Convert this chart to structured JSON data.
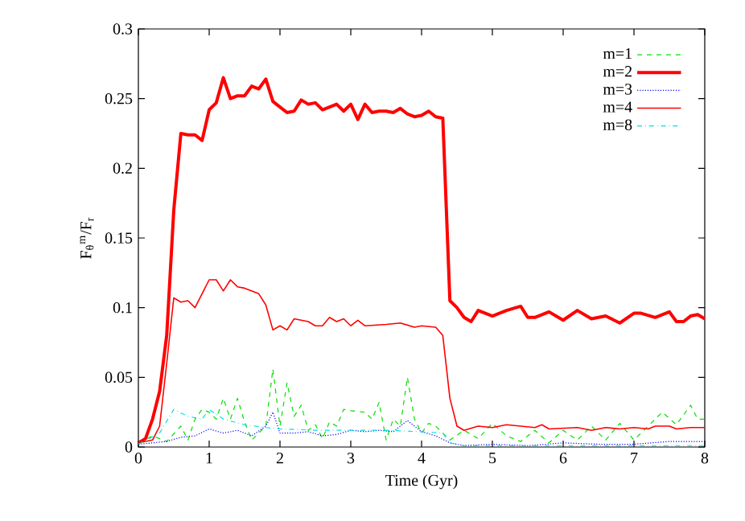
{
  "chart_data": {
    "type": "line",
    "xlabel": "Time (Gyr)",
    "ylabel": "F$_{θ}$$^{m}$/F$_{r}$",
    "xlim": [
      0,
      8
    ],
    "ylim": [
      0,
      0.3
    ],
    "xticks": [
      0,
      1,
      2,
      3,
      4,
      5,
      6,
      7,
      8
    ],
    "yticks": [
      0,
      0.05,
      0.1,
      0.15,
      0.2,
      0.25,
      0.3
    ],
    "grid": false,
    "legend": "top right",
    "series": [
      {
        "name": "m=1",
        "color": "#00e000",
        "line_style": "dashed",
        "x": [
          0,
          0.2,
          0.4,
          0.6,
          0.7,
          0.8,
          0.9,
          1.0,
          1.1,
          1.2,
          1.3,
          1.4,
          1.5,
          1.6,
          1.7,
          1.8,
          1.9,
          2.0,
          2.1,
          2.2,
          2.3,
          2.4,
          2.5,
          2.6,
          2.7,
          2.8,
          2.9,
          3.0,
          3.2,
          3.3,
          3.4,
          3.5,
          3.6,
          3.7,
          3.8,
          3.9,
          4.0,
          4.1,
          4.2,
          4.4,
          4.6,
          4.8,
          5.0,
          5.2,
          5.4,
          5.6,
          5.8,
          6.0,
          6.2,
          6.4,
          6.6,
          6.8,
          7.0,
          7.2,
          7.4,
          7.6,
          7.8,
          7.9,
          8.0
        ],
        "values": [
          0.003,
          0.008,
          0.004,
          0.015,
          0.005,
          0.02,
          0.027,
          0.025,
          0.02,
          0.035,
          0.02,
          0.035,
          0.018,
          0.005,
          0.01,
          0.015,
          0.056,
          0.015,
          0.046,
          0.022,
          0.03,
          0.012,
          0.016,
          0.006,
          0.018,
          0.015,
          0.027,
          0.026,
          0.025,
          0.02,
          0.032,
          0.005,
          0.02,
          0.015,
          0.05,
          0.02,
          0.01,
          0.017,
          0.015,
          0.005,
          0.012,
          0.006,
          0.017,
          0.008,
          0.004,
          0.012,
          0.003,
          0.012,
          0.005,
          0.015,
          0.005,
          0.017,
          0.005,
          0.015,
          0.025,
          0.016,
          0.03,
          0.02,
          0.02
        ]
      },
      {
        "name": "m=2",
        "color": "#ff0000",
        "line_style": "solid",
        "x": [
          0,
          0.1,
          0.2,
          0.3,
          0.4,
          0.5,
          0.6,
          0.7,
          0.8,
          0.9,
          1.0,
          1.1,
          1.2,
          1.3,
          1.4,
          1.5,
          1.6,
          1.7,
          1.8,
          1.9,
          2.0,
          2.1,
          2.2,
          2.3,
          2.4,
          2.5,
          2.6,
          2.7,
          2.8,
          2.9,
          3.0,
          3.1,
          3.2,
          3.3,
          3.4,
          3.5,
          3.6,
          3.7,
          3.8,
          3.9,
          4.0,
          4.1,
          4.2,
          4.3,
          4.4,
          4.5,
          4.6,
          4.7,
          4.8,
          4.9,
          5.0,
          5.2,
          5.4,
          5.5,
          5.6,
          5.8,
          6.0,
          6.2,
          6.4,
          6.6,
          6.8,
          7.0,
          7.1,
          7.3,
          7.5,
          7.6,
          7.7,
          7.8,
          7.9,
          8.0
        ],
        "values": [
          0.003,
          0.006,
          0.02,
          0.04,
          0.08,
          0.17,
          0.225,
          0.224,
          0.224,
          0.22,
          0.242,
          0.247,
          0.265,
          0.25,
          0.252,
          0.252,
          0.259,
          0.257,
          0.264,
          0.248,
          0.244,
          0.24,
          0.241,
          0.249,
          0.246,
          0.247,
          0.242,
          0.244,
          0.246,
          0.241,
          0.246,
          0.235,
          0.246,
          0.24,
          0.241,
          0.241,
          0.24,
          0.243,
          0.239,
          0.237,
          0.238,
          0.241,
          0.237,
          0.236,
          0.105,
          0.1,
          0.093,
          0.09,
          0.098,
          0.096,
          0.094,
          0.098,
          0.101,
          0.093,
          0.093,
          0.097,
          0.091,
          0.098,
          0.092,
          0.094,
          0.089,
          0.096,
          0.096,
          0.093,
          0.097,
          0.09,
          0.09,
          0.094,
          0.095,
          0.092
        ]
      },
      {
        "name": "m=3",
        "color": "#0000ff",
        "line_style": "dotted",
        "x": [
          0,
          0.4,
          0.6,
          0.8,
          1.0,
          1.2,
          1.4,
          1.6,
          1.8,
          1.9,
          2.0,
          2.2,
          2.4,
          2.6,
          2.8,
          3.0,
          3.2,
          3.4,
          3.6,
          3.8,
          4.0,
          4.2,
          4.4,
          4.6,
          5.0,
          5.5,
          6.0,
          6.5,
          7.0,
          7.5,
          8.0
        ],
        "values": [
          0.002,
          0.004,
          0.007,
          0.008,
          0.013,
          0.01,
          0.012,
          0.008,
          0.015,
          0.025,
          0.01,
          0.01,
          0.011,
          0.008,
          0.009,
          0.012,
          0.011,
          0.012,
          0.011,
          0.019,
          0.011,
          0.008,
          0.003,
          0.001,
          0.002,
          0.001,
          0.003,
          0.002,
          0.002,
          0.004,
          0.004
        ]
      },
      {
        "name": "m=4",
        "color": "#ff0000",
        "line_style": "solid",
        "x": [
          0,
          0.2,
          0.3,
          0.4,
          0.5,
          0.6,
          0.7,
          0.8,
          0.9,
          1.0,
          1.1,
          1.2,
          1.3,
          1.4,
          1.5,
          1.7,
          1.8,
          1.9,
          2.0,
          2.1,
          2.2,
          2.4,
          2.5,
          2.6,
          2.7,
          2.8,
          2.9,
          3.0,
          3.1,
          3.2,
          3.5,
          3.7,
          3.9,
          4.0,
          4.2,
          4.3,
          4.4,
          4.5,
          4.6,
          4.8,
          5.0,
          5.2,
          5.6,
          5.7,
          5.8,
          6.2,
          6.4,
          6.6,
          6.8,
          7.0,
          7.2,
          7.3,
          7.5,
          7.6,
          7.8,
          8.0
        ],
        "values": [
          0.003,
          0.005,
          0.015,
          0.06,
          0.107,
          0.104,
          0.105,
          0.1,
          0.11,
          0.12,
          0.12,
          0.112,
          0.12,
          0.115,
          0.114,
          0.11,
          0.102,
          0.084,
          0.087,
          0.084,
          0.092,
          0.09,
          0.087,
          0.087,
          0.093,
          0.09,
          0.092,
          0.087,
          0.091,
          0.087,
          0.088,
          0.089,
          0.086,
          0.087,
          0.086,
          0.08,
          0.035,
          0.015,
          0.012,
          0.015,
          0.014,
          0.016,
          0.014,
          0.016,
          0.013,
          0.014,
          0.012,
          0.014,
          0.013,
          0.014,
          0.013,
          0.015,
          0.015,
          0.013,
          0.014,
          0.014
        ]
      },
      {
        "name": "m=8",
        "color": "#00e0e0",
        "line_style": "dashdot",
        "x": [
          0,
          0.3,
          0.5,
          0.7,
          0.9,
          1.0,
          1.2,
          1.5,
          1.8,
          2.0,
          2.5,
          3.0,
          3.5,
          4.0,
          4.3,
          4.4,
          4.6,
          5.0,
          6.0,
          7.0,
          8.0
        ],
        "values": [
          0.002,
          0.01,
          0.027,
          0.022,
          0.02,
          0.027,
          0.02,
          0.016,
          0.014,
          0.013,
          0.012,
          0.012,
          0.012,
          0.011,
          0.01,
          0.003,
          0.001,
          0.001,
          0.001,
          0.001,
          0.001
        ]
      }
    ]
  }
}
